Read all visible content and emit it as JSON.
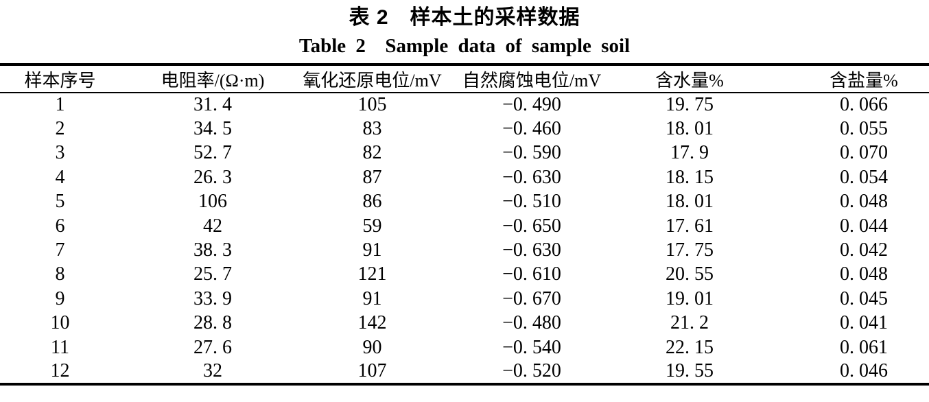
{
  "colors": {
    "text": "#000000",
    "background": "#ffffff",
    "rule": "#000000"
  },
  "caption": {
    "zh": "表 2　样本土的采样数据",
    "en": "Table 2  Sample data of sample soil"
  },
  "table": {
    "headers": [
      "样本序号",
      "电阻率/(Ω·m)",
      "氧化还原电位/mV",
      "自然腐蚀电位/mV",
      "含水量%",
      "含盐量%"
    ],
    "rows": [
      [
        "1",
        "31. 4",
        "105",
        "−0. 490",
        "19. 75",
        "0. 066"
      ],
      [
        "2",
        "34. 5",
        "83",
        "−0. 460",
        "18. 01",
        "0. 055"
      ],
      [
        "3",
        "52. 7",
        "82",
        "−0. 590",
        "17. 9",
        "0. 070"
      ],
      [
        "4",
        "26. 3",
        "87",
        "−0. 630",
        "18. 15",
        "0. 054"
      ],
      [
        "5",
        "106",
        "86",
        "−0. 510",
        "18. 01",
        "0. 048"
      ],
      [
        "6",
        "42",
        "59",
        "−0. 650",
        "17. 61",
        "0. 044"
      ],
      [
        "7",
        "38. 3",
        "91",
        "−0. 630",
        "17. 75",
        "0. 042"
      ],
      [
        "8",
        "25. 7",
        "121",
        "−0. 610",
        "20. 55",
        "0. 048"
      ],
      [
        "9",
        "33. 9",
        "91",
        "−0. 670",
        "19. 01",
        "0. 045"
      ],
      [
        "10",
        "28. 8",
        "142",
        "−0. 480",
        "21. 2",
        "0. 041"
      ],
      [
        "11",
        "27. 6",
        "90",
        "−0. 540",
        "22. 15",
        "0. 061"
      ],
      [
        "12",
        "32",
        "107",
        "−0. 520",
        "19. 55",
        "0. 046"
      ]
    ]
  },
  "chart_data": {
    "type": "table",
    "title_zh": "表 2　样本土的采样数据",
    "title_en": "Table 2  Sample data of sample soil",
    "columns": [
      "样本序号",
      "电阻率/(Ω·m)",
      "氧化还原电位/mV",
      "自然腐蚀电位/mV",
      "含水量%",
      "含盐量%"
    ],
    "sample_no": [
      1,
      2,
      3,
      4,
      5,
      6,
      7,
      8,
      9,
      10,
      11,
      12
    ],
    "resistivity_ohm_m": [
      31.4,
      34.5,
      52.7,
      26.3,
      106,
      42,
      38.3,
      25.7,
      33.9,
      28.8,
      27.6,
      32
    ],
    "redox_potential_mV": [
      105,
      83,
      82,
      87,
      86,
      59,
      91,
      121,
      91,
      142,
      90,
      107
    ],
    "natural_corrosion_potential_mV": [
      -0.49,
      -0.46,
      -0.59,
      -0.63,
      -0.51,
      -0.65,
      -0.63,
      -0.61,
      -0.67,
      -0.48,
      -0.54,
      -0.52
    ],
    "water_content_pct": [
      19.75,
      18.01,
      17.9,
      18.15,
      18.01,
      17.61,
      17.75,
      20.55,
      19.01,
      21.2,
      22.15,
      19.55
    ],
    "salt_content_pct": [
      0.066,
      0.055,
      0.07,
      0.054,
      0.048,
      0.044,
      0.042,
      0.048,
      0.045,
      0.041,
      0.061,
      0.046
    ]
  }
}
